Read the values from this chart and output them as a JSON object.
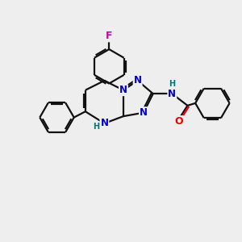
{
  "bg_color": "#eeeeee",
  "atom_colors": {
    "C": "#000000",
    "N": "#0000cc",
    "O": "#ee0000",
    "F": "#cc00aa",
    "H": "#007777"
  },
  "bond_color": "#111111",
  "bond_width": 1.6,
  "figsize": [
    3.0,
    3.0
  ],
  "dpi": 100,
  "xlim": [
    0,
    10
  ],
  "ylim": [
    0,
    10
  ]
}
